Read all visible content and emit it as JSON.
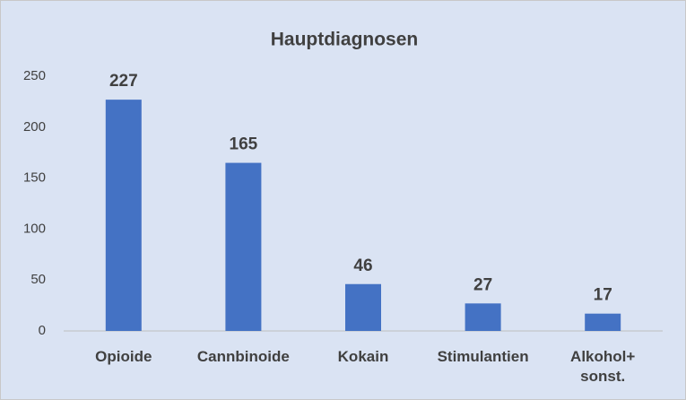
{
  "chart_data": {
    "type": "bar",
    "title": "Hauptdiagnosen",
    "categories": [
      "Opioide",
      "Cannbinoide",
      "Kokain",
      "Stimulantien",
      "Alkohol+ sonst."
    ],
    "values": [
      227,
      165,
      46,
      27,
      17
    ],
    "color": "#4472c4",
    "ylim": [
      0,
      250
    ],
    "yticks": [
      0,
      50,
      100,
      150,
      200,
      250
    ],
    "grid": false
  }
}
